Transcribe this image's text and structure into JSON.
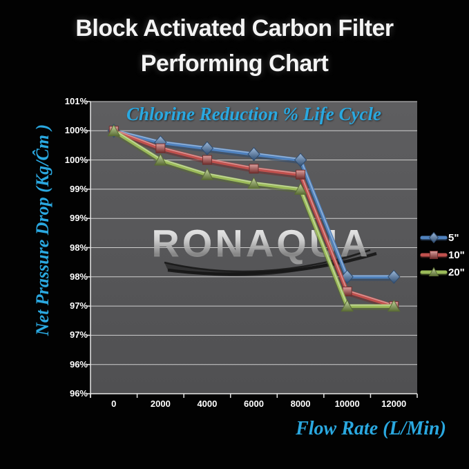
{
  "page": {
    "title_line1": "Block Activated Carbon Filter",
    "title_line2": "Performing Chart",
    "watermark": "RONAQUA",
    "background": "#000000"
  },
  "chart_data": {
    "type": "line",
    "title": "Chlorine Reduction % Life Cycle",
    "xlabel": "Flow Rate (L/Min)",
    "ylabel": "Net Prassure Drop (Kg/Ĉm )",
    "x": [
      0,
      2000,
      4000,
      6000,
      8000,
      10000,
      12000
    ],
    "xtick_labels": [
      "0",
      "2000",
      "4000",
      "6000",
      "8000",
      "10000",
      "12000"
    ],
    "ylim": [
      96,
      101
    ],
    "ytick_step": 0.5,
    "ytick_labels_top_to_bottom": [
      "101%",
      "100%",
      "100%",
      "99%",
      "99%",
      "98%",
      "98%",
      "97%",
      "97%",
      "96%",
      "96%"
    ],
    "grid": true,
    "legend_position": "right",
    "series": [
      {
        "name": "5\"",
        "marker": "diamond",
        "color": "#4f81bd",
        "values": [
          100.5,
          100.3,
          100.2,
          100.1,
          100.0,
          98.0,
          98.0
        ]
      },
      {
        "name": "10\"",
        "marker": "square",
        "color": "#c0504d",
        "values": [
          100.5,
          100.2,
          100.0,
          99.85,
          99.75,
          97.75,
          97.5
        ]
      },
      {
        "name": "20\"",
        "marker": "triangle",
        "color": "#9bbb59",
        "values": [
          100.5,
          100.0,
          99.75,
          99.6,
          99.5,
          97.5,
          97.5
        ]
      }
    ],
    "colors": {
      "plot_bg_top": "#5e5e60",
      "plot_bg_bottom": "#505052",
      "gridline": "#cfcfcf",
      "axis": "#e8e8e8",
      "accent_text": "#2aa8e0",
      "title_text": "#f4f4f4",
      "tick_text": "#ffffff"
    }
  }
}
